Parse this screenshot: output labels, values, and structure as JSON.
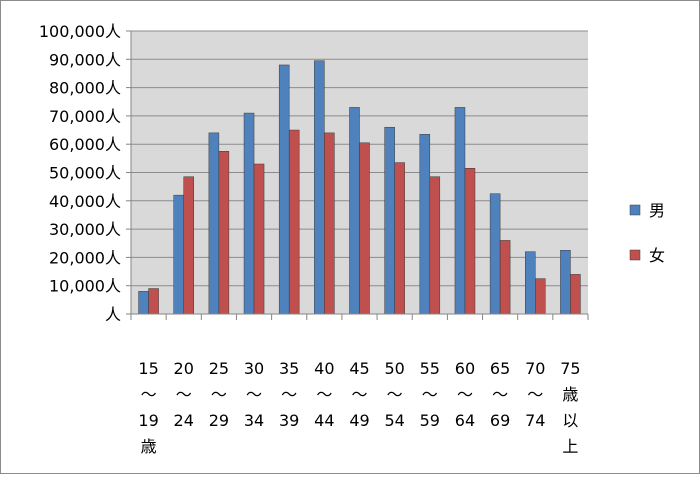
{
  "chart_data": {
    "type": "bar",
    "title": "",
    "xlabel": "",
    "ylabel": "",
    "ylim": [
      0,
      100000
    ],
    "y_ticks": [
      {
        "value": 0,
        "label": "人"
      },
      {
        "value": 10000,
        "label": "10,000人"
      },
      {
        "value": 20000,
        "label": "20,000人"
      },
      {
        "value": 30000,
        "label": "30,000人"
      },
      {
        "value": 40000,
        "label": "40,000人"
      },
      {
        "value": 50000,
        "label": "50,000人"
      },
      {
        "value": 60000,
        "label": "60,000人"
      },
      {
        "value": 70000,
        "label": "70,000人"
      },
      {
        "value": 80000,
        "label": "80,000人"
      },
      {
        "value": 90000,
        "label": "90,000人"
      },
      {
        "value": 100000,
        "label": "100,000人"
      }
    ],
    "categories": [
      "15〜19歳",
      "20〜24",
      "25〜29",
      "30〜34",
      "35〜39",
      "40〜44",
      "45〜49",
      "50〜54",
      "55〜59",
      "60〜64",
      "65〜69",
      "70〜74",
      "75歳以上"
    ],
    "category_label_lines": [
      [
        "15",
        "〜",
        "19",
        "歳"
      ],
      [
        "20",
        "〜",
        "24"
      ],
      [
        "25",
        "〜",
        "29"
      ],
      [
        "30",
        "〜",
        "34"
      ],
      [
        "35",
        "〜",
        "39"
      ],
      [
        "40",
        "〜",
        "44"
      ],
      [
        "45",
        "〜",
        "49"
      ],
      [
        "50",
        "〜",
        "54"
      ],
      [
        "55",
        "〜",
        "59"
      ],
      [
        "60",
        "〜",
        "64"
      ],
      [
        "65",
        "〜",
        "69"
      ],
      [
        "70",
        "〜",
        "74"
      ],
      [
        "75",
        "歳",
        "以",
        "上"
      ]
    ],
    "series": [
      {
        "name": "男",
        "color": "#4f81bd",
        "values": [
          8000,
          42000,
          64000,
          71000,
          88000,
          89500,
          73000,
          66000,
          63500,
          73000,
          42500,
          22000,
          22500
        ]
      },
      {
        "name": "女",
        "color": "#c0504d",
        "values": [
          9000,
          48500,
          57500,
          53000,
          65000,
          64000,
          60500,
          53500,
          48500,
          51500,
          26000,
          12500,
          14000
        ]
      }
    ],
    "grid": true,
    "legend": "right"
  }
}
